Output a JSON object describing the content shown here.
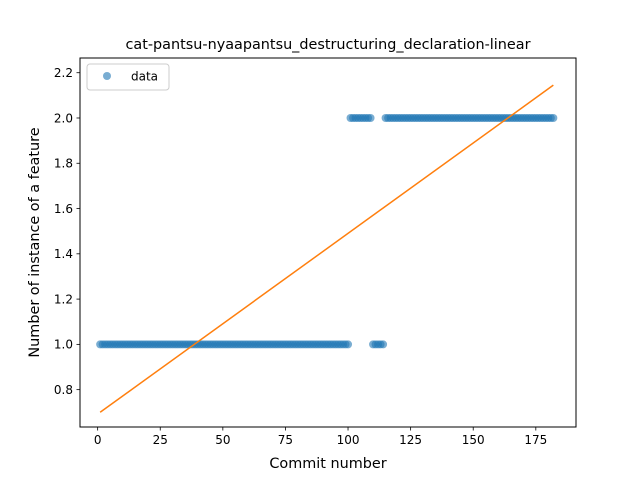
{
  "chart_data": {
    "type": "scatter",
    "title": "cat-pantsu-nyaapantsu_destructuring_declaration-linear",
    "xlabel": "Commit number",
    "ylabel": "Number of instance of a feature",
    "xlim": [
      -7.05,
      191.05
    ],
    "ylim": [
      0.635,
      2.265
    ],
    "xticks": [
      0,
      25,
      50,
      75,
      100,
      125,
      150,
      175
    ],
    "yticks": [
      0.8,
      1.0,
      1.2,
      1.4,
      1.6,
      1.8,
      2.0,
      2.2
    ],
    "ytick_labels": [
      "0.8",
      "1.0",
      "1.2",
      "1.4",
      "1.6",
      "1.8",
      "2.0",
      "2.2"
    ],
    "grid": false,
    "legend_position": "top-left",
    "series": [
      {
        "name": "data",
        "kind": "points",
        "color": "#1f77b4",
        "segments": [
          {
            "x_from": 1,
            "x_to": 100,
            "y": 1.0
          },
          {
            "x_from": 101,
            "x_to": 109,
            "y": 2.0
          },
          {
            "x_from": 110,
            "x_to": 114,
            "y": 1.0
          },
          {
            "x_from": 115,
            "x_to": 182,
            "y": 2.0
          }
        ]
      },
      {
        "kind": "line",
        "color": "#ff7f0e",
        "x": [
          1,
          182
        ],
        "y": [
          0.7,
          2.145
        ]
      }
    ]
  }
}
